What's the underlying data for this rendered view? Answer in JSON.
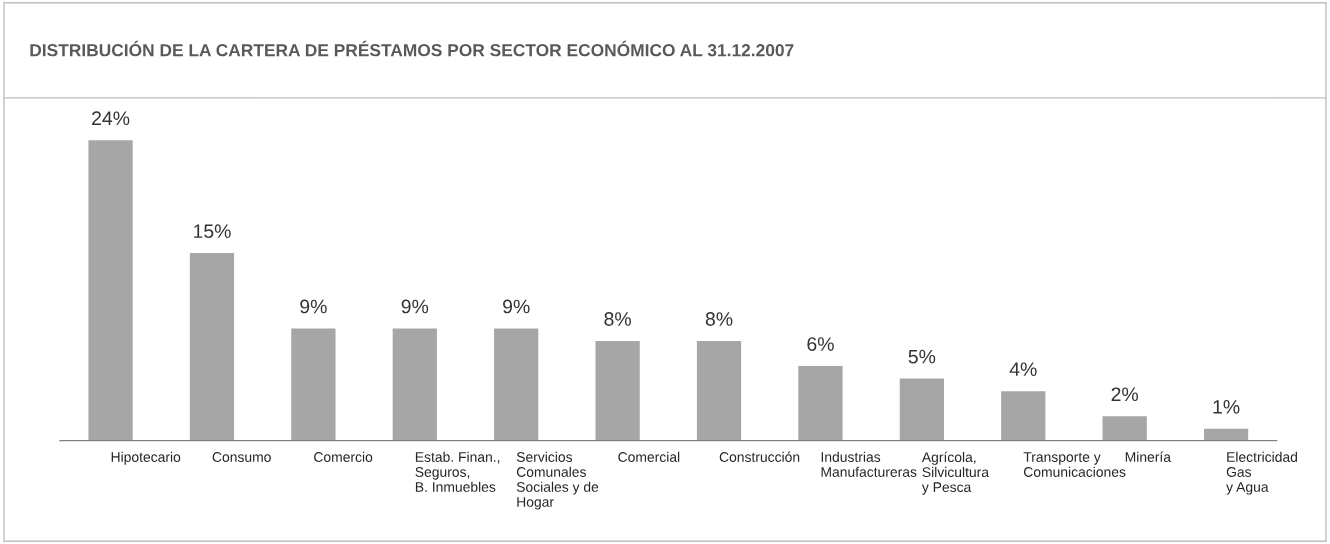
{
  "chart_data": {
    "type": "bar",
    "title": "DISTRIBUCIÓN DE LA CARTERA DE PRÉSTAMOS POR SECTOR ECONÓMICO AL 31.12.2007",
    "categories": [
      "Hipotecario",
      "Consumo",
      "Comercio",
      "Estab. Finan.,\nSeguros,\nB. Inmuebles",
      "Servicios\nComunales\nSociales y de\nHogar",
      "Comercial",
      "Construcción",
      "Industrias\nManufactureras",
      "Agrícola,\nSilvicultura\ny Pesca",
      "Transporte y\nComunicaciones",
      "Minería",
      "Electricidad\nGas\ny Agua"
    ],
    "values": [
      24,
      15,
      9,
      9,
      9,
      8,
      8,
      6,
      5,
      4,
      2,
      1
    ],
    "value_labels": [
      "24%",
      "15%",
      "9%",
      "9%",
      "9%",
      "8%",
      "8%",
      "6%",
      "5%",
      "4%",
      "2%",
      "1%"
    ],
    "color": "#a6a6a6",
    "grid": false,
    "legend": false
  }
}
